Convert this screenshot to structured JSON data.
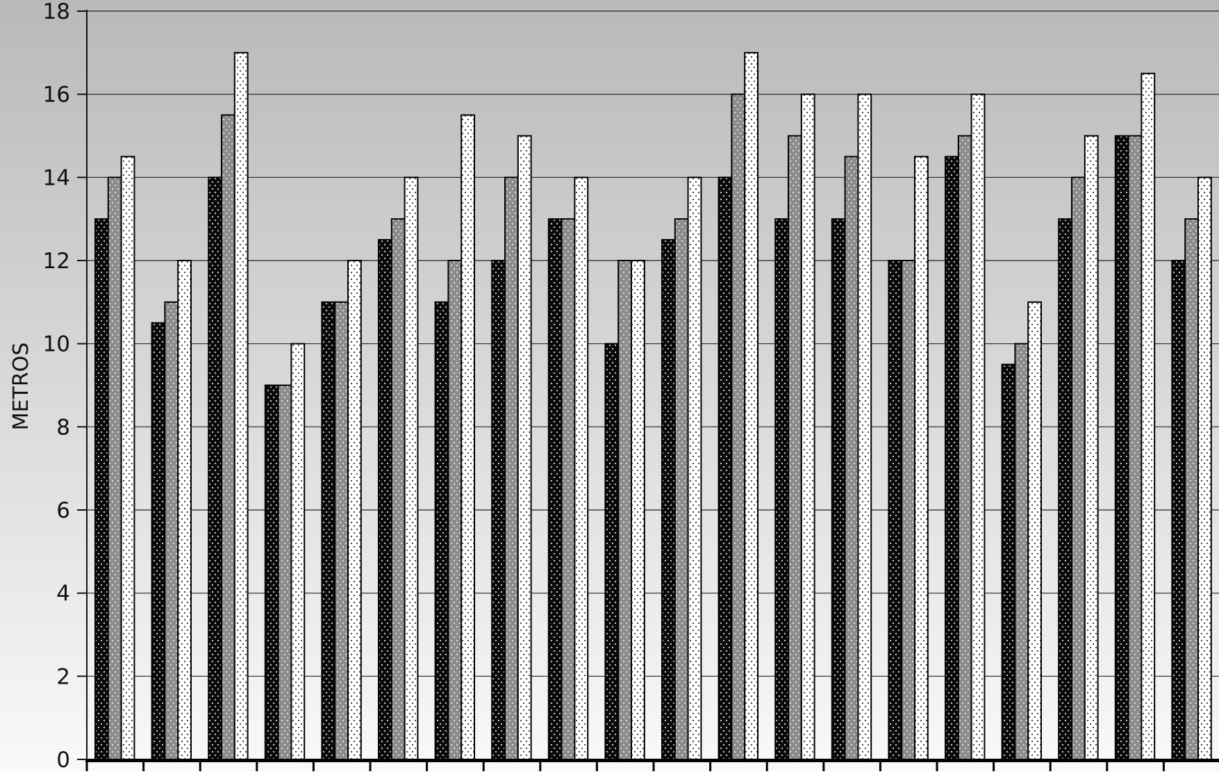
{
  "chart_data": {
    "type": "bar",
    "ylabel": "METROS",
    "ylim": [
      0,
      18
    ],
    "yticks": [
      0,
      2,
      4,
      6,
      8,
      10,
      12,
      14,
      16,
      18
    ],
    "grid": true,
    "legend": "none",
    "background": "vertical gradient from light gray at bottom to darker gray at top",
    "series": [
      {
        "color": "#0a0a0a",
        "pattern": "white dots on black",
        "values": [
          13,
          10.5,
          14,
          9,
          11,
          12.5,
          11,
          12,
          13,
          10,
          12.5,
          14,
          13,
          13,
          12,
          14.5,
          9.5,
          13,
          15,
          12
        ]
      },
      {
        "color": "#8c8c8c",
        "pattern": "white dots on gray",
        "values": [
          14,
          11,
          15.5,
          9,
          11,
          13,
          12,
          14,
          13,
          12,
          13,
          16,
          15,
          14.5,
          12,
          15,
          10,
          14,
          15,
          13
        ]
      },
      {
        "color": "#ffffff",
        "pattern": "black dots on white",
        "values": [
          14.5,
          12,
          17,
          10,
          12,
          14,
          15.5,
          15,
          14,
          12,
          14,
          17,
          16,
          16,
          14.5,
          16,
          11,
          15,
          16.5,
          14
        ]
      }
    ]
  }
}
